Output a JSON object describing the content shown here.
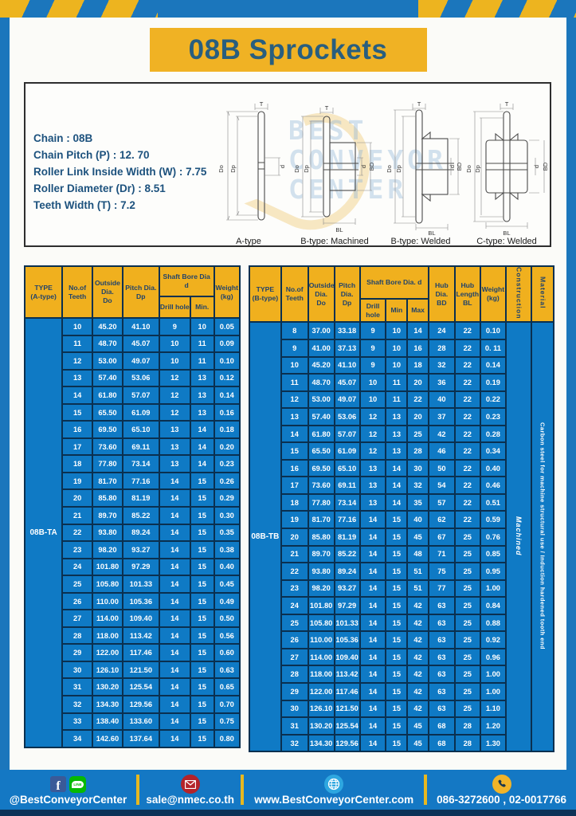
{
  "title": "08B Sprockets",
  "specs": {
    "lines": [
      "Chain  : 08B",
      "Chain Pitch (P)  :  12. 70",
      "Roller Link Inside Width (W)  :  7.75",
      "Roller Diameter (Dr)  : 8.51",
      "Teeth Width (T)  :  7.2"
    ]
  },
  "diagrams": {
    "dims": {
      "t": "T",
      "dia_o": "Do",
      "dia_p": "Dp",
      "d": "d",
      "bd": "BD",
      "bl": "BL"
    },
    "figures": [
      {
        "label": "A-type"
      },
      {
        "label": "B-type: Machined"
      },
      {
        "label": "B-type: Welded"
      },
      {
        "label": "C-type: Welded"
      }
    ],
    "watermark": [
      "BEST",
      "CONVEYOR",
      "CENTER"
    ]
  },
  "tables": {
    "a": {
      "headers": {
        "type1": "TYPE",
        "type2": "(A-type)",
        "teeth1": "No.of",
        "teeth2": "Teeth",
        "od1": "Outside",
        "od2": "Dia.",
        "od3": "Do",
        "pd1": "Pitch Dia.",
        "pd2": "Dp",
        "shaft": "Shaft Bore Dia d",
        "drill": "Drill hole",
        "min": "Min.",
        "w1": "Weight",
        "w2": "(kg)"
      },
      "type_value": "08B-TA",
      "rows": [
        [
          "10",
          "45.20",
          "41.10",
          "9",
          "10",
          "0.05"
        ],
        [
          "11",
          "48.70",
          "45.07",
          "10",
          "11",
          "0.09"
        ],
        [
          "12",
          "53.00",
          "49.07",
          "10",
          "11",
          "0.10"
        ],
        [
          "13",
          "57.40",
          "53.06",
          "12",
          "13",
          "0.12"
        ],
        [
          "14",
          "61.80",
          "57.07",
          "12",
          "13",
          "0.14"
        ],
        [
          "15",
          "65.50",
          "61.09",
          "12",
          "13",
          "0.16"
        ],
        [
          "16",
          "69.50",
          "65.10",
          "13",
          "14",
          "0.18"
        ],
        [
          "17",
          "73.60",
          "69.11",
          "13",
          "14",
          "0.20"
        ],
        [
          "18",
          "77.80",
          "73.14",
          "13",
          "14",
          "0.23"
        ],
        [
          "19",
          "81.70",
          "77.16",
          "14",
          "15",
          "0.26"
        ],
        [
          "20",
          "85.80",
          "81.19",
          "14",
          "15",
          "0.29"
        ],
        [
          "21",
          "89.70",
          "85.22",
          "14",
          "15",
          "0.30"
        ],
        [
          "22",
          "93.80",
          "89.24",
          "14",
          "15",
          "0.35"
        ],
        [
          "23",
          "98.20",
          "93.27",
          "14",
          "15",
          "0.38"
        ],
        [
          "24",
          "101.80",
          "97.29",
          "14",
          "15",
          "0.40"
        ],
        [
          "25",
          "105.80",
          "101.33",
          "14",
          "15",
          "0.45"
        ],
        [
          "26",
          "110.00",
          "105.36",
          "14",
          "15",
          "0.49"
        ],
        [
          "27",
          "114.00",
          "109.40",
          "14",
          "15",
          "0.50"
        ],
        [
          "28",
          "118.00",
          "113.42",
          "14",
          "15",
          "0.56"
        ],
        [
          "29",
          "122.00",
          "117.46",
          "14",
          "15",
          "0.60"
        ],
        [
          "30",
          "126.10",
          "121.50",
          "14",
          "15",
          "0.63"
        ],
        [
          "31",
          "130.20",
          "125.54",
          "14",
          "15",
          "0.65"
        ],
        [
          "32",
          "134.30",
          "129.56",
          "14",
          "15",
          "0.70"
        ],
        [
          "33",
          "138.40",
          "133.60",
          "14",
          "15",
          "0.75"
        ],
        [
          "34",
          "142.60",
          "137.64",
          "14",
          "15",
          "0.80"
        ]
      ]
    },
    "b": {
      "headers": {
        "type1": "TYPE",
        "type2": "(B-type)",
        "teeth1": "No.of",
        "teeth2": "Teeth",
        "od1": "Outside",
        "od2": "Dia.",
        "od3": "Do",
        "pd1": "Pitch",
        "pd2": "Dia.",
        "pd3": "Dp",
        "shaft": "Shaft Bore Dia.  d",
        "drill": "Drill hole",
        "min": "Min",
        "max": "Max",
        "hd1": "Hub",
        "hd2": "Dia.",
        "hd3": "BD",
        "hl1": "Hub",
        "hl2": "Length",
        "hl3": "BL",
        "w1": "Weight",
        "w2": "(kg)",
        "construction": "Construction",
        "material": "Material"
      },
      "type_value": "08B-TB",
      "construction_value": "Machined",
      "material_value": "Carbon steel for machine structural use / Induction hardened tooth end",
      "rows": [
        [
          "8",
          "37.00",
          "33.18",
          "9",
          "10",
          "14",
          "24",
          "22",
          "0.10"
        ],
        [
          "9",
          "41.00",
          "37.13",
          "9",
          "10",
          "16",
          "28",
          "22",
          "0. 11"
        ],
        [
          "10",
          "45.20",
          "41.10",
          "9",
          "10",
          "18",
          "32",
          "22",
          "0.14"
        ],
        [
          "11",
          "48.70",
          "45.07",
          "10",
          "11",
          "20",
          "36",
          "22",
          "0.19"
        ],
        [
          "12",
          "53.00",
          "49.07",
          "10",
          "11",
          "22",
          "40",
          "22",
          "0.22"
        ],
        [
          "13",
          "57.40",
          "53.06",
          "12",
          "13",
          "20",
          "37",
          "22",
          "0.23"
        ],
        [
          "14",
          "61.80",
          "57.07",
          "12",
          "13",
          "25",
          "42",
          "22",
          "0.28"
        ],
        [
          "15",
          "65.50",
          "61.09",
          "12",
          "13",
          "28",
          "46",
          "22",
          "0.34"
        ],
        [
          "16",
          "69.50",
          "65.10",
          "13",
          "14",
          "30",
          "50",
          "22",
          "0.40"
        ],
        [
          "17",
          "73.60",
          "69.11",
          "13",
          "14",
          "32",
          "54",
          "22",
          "0.46"
        ],
        [
          "18",
          "77.80",
          "73.14",
          "13",
          "14",
          "35",
          "57",
          "22",
          "0.51"
        ],
        [
          "19",
          "81.70",
          "77.16",
          "14",
          "15",
          "40",
          "62",
          "22",
          "0.59"
        ],
        [
          "20",
          "85.80",
          "81.19",
          "14",
          "15",
          "45",
          "67",
          "25",
          "0.76"
        ],
        [
          "21",
          "89.70",
          "85.22",
          "14",
          "15",
          "48",
          "71",
          "25",
          "0.85"
        ],
        [
          "22",
          "93.80",
          "89.24",
          "14",
          "15",
          "51",
          "75",
          "25",
          "0.95"
        ],
        [
          "23",
          "98.20",
          "93.27",
          "14",
          "15",
          "51",
          "77",
          "25",
          "1.00"
        ],
        [
          "24",
          "101.80",
          "97.29",
          "14",
          "15",
          "42",
          "63",
          "25",
          "0.84"
        ],
        [
          "25",
          "105.80",
          "101.33",
          "14",
          "15",
          "42",
          "63",
          "25",
          "0.88"
        ],
        [
          "26",
          "110.00",
          "105.36",
          "14",
          "15",
          "42",
          "63",
          "25",
          "0.92"
        ],
        [
          "27",
          "114.00",
          "109.40",
          "14",
          "15",
          "42",
          "63",
          "25",
          "0.96"
        ],
        [
          "28",
          "118.00",
          "113.42",
          "14",
          "15",
          "42",
          "63",
          "25",
          "1.00"
        ],
        [
          "29",
          "122.00",
          "117.46",
          "14",
          "15",
          "42",
          "63",
          "25",
          "1.00"
        ],
        [
          "30",
          "126.10",
          "121.50",
          "14",
          "15",
          "42",
          "63",
          "25",
          "1.10"
        ],
        [
          "31",
          "130.20",
          "125.54",
          "14",
          "15",
          "45",
          "68",
          "28",
          "1.20"
        ],
        [
          "32",
          "134.30",
          "129.56",
          "14",
          "15",
          "45",
          "68",
          "28",
          "1.30"
        ]
      ]
    }
  },
  "footer": {
    "line_label": "LINE",
    "social": "@BestConveyorCenter",
    "email": "sale@nmec.co.th",
    "website": "www.BestConveyorCenter.com",
    "phone": "086-3272600 , 02-0017766"
  },
  "colors": {
    "frame_blue": "#1b76bc",
    "hazard_yellow": "#edb41f",
    "banner_yellow": "#f0b224",
    "header_yellow": "#f0b01e",
    "table_blue": "#0f7ac5",
    "border_navy": "#0a3050",
    "title_text": "#295e7e",
    "footer_blue": "#1478c4",
    "footer_dark": "#0c3257"
  }
}
